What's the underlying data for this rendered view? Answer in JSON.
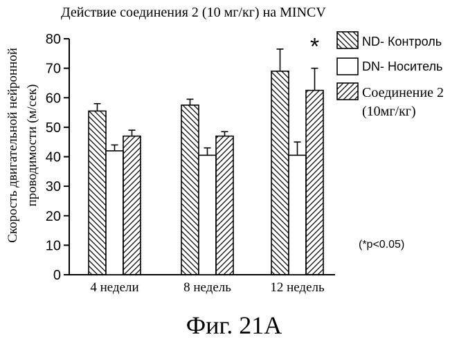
{
  "chart_data": {
    "type": "bar",
    "title": "Действие соединения 2 (10 мг/кг) на MINCV",
    "ylabel_line1": "Скорость двигательной нейронной",
    "ylabel_line2": "проводимости (м/сек)",
    "ylim": [
      0,
      80
    ],
    "yticks": [
      0,
      10,
      20,
      30,
      40,
      50,
      60,
      70,
      80
    ],
    "categories": [
      "4 недели",
      "8 недель",
      "12 недель"
    ],
    "series": [
      {
        "name": "ND- Контроль",
        "pattern": "hatch-back",
        "values": [
          55.5,
          57.5,
          69
        ],
        "errors": [
          2.5,
          2.0,
          7.5
        ]
      },
      {
        "name": "DN- Носитель",
        "pattern": "plain",
        "values": [
          42,
          40.5,
          40.5
        ],
        "errors": [
          2.0,
          2.5,
          4.5
        ]
      },
      {
        "name": "Соединение 2",
        "pattern": "hatch-fwd",
        "values": [
          47,
          47,
          62.5
        ],
        "errors": [
          2.0,
          1.5,
          7.5
        ]
      }
    ],
    "legend_extra": "(10мг/кг)",
    "significance_mark": "*",
    "note": "(*p<0.05)",
    "legend_position": "right",
    "grid": false
  },
  "caption": "Фиг. 21А",
  "colors": {
    "ink": "#000000",
    "background": "#ffffff"
  }
}
